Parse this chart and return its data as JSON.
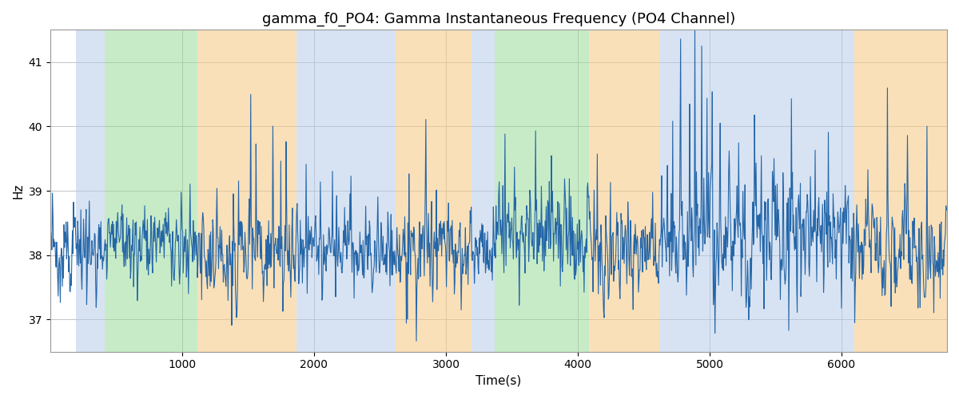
{
  "title": "gamma_f0_PO4: Gamma Instantaneous Frequency (PO4 Channel)",
  "xlabel": "Time(s)",
  "ylabel": "Hz",
  "line_color": "#2566a8",
  "line_width": 0.8,
  "ylim": [
    36.5,
    41.5
  ],
  "xlim": [
    0,
    6800
  ],
  "yticks": [
    37,
    38,
    39,
    40,
    41
  ],
  "xticks": [
    1000,
    2000,
    3000,
    4000,
    5000,
    6000
  ],
  "title_fontsize": 13,
  "label_fontsize": 11,
  "grid_color": "#bbbbbb",
  "regions": [
    {
      "xmin": 195,
      "xmax": 415,
      "color": "#b0c8e8",
      "alpha": 0.5
    },
    {
      "xmin": 415,
      "xmax": 1115,
      "color": "#90d890",
      "alpha": 0.5
    },
    {
      "xmin": 1115,
      "xmax": 1870,
      "color": "#f5c880",
      "alpha": 0.55
    },
    {
      "xmin": 1870,
      "xmax": 2620,
      "color": "#b0c8e8",
      "alpha": 0.5
    },
    {
      "xmin": 2620,
      "xmax": 3195,
      "color": "#f5c880",
      "alpha": 0.55
    },
    {
      "xmin": 3195,
      "xmax": 3370,
      "color": "#b0c8e8",
      "alpha": 0.5
    },
    {
      "xmin": 3370,
      "xmax": 4085,
      "color": "#90d890",
      "alpha": 0.5
    },
    {
      "xmin": 4085,
      "xmax": 4620,
      "color": "#f5c880",
      "alpha": 0.55
    },
    {
      "xmin": 4620,
      "xmax": 6095,
      "color": "#b0c8e8",
      "alpha": 0.5
    },
    {
      "xmin": 6095,
      "xmax": 6800,
      "color": "#f5c880",
      "alpha": 0.55
    }
  ]
}
